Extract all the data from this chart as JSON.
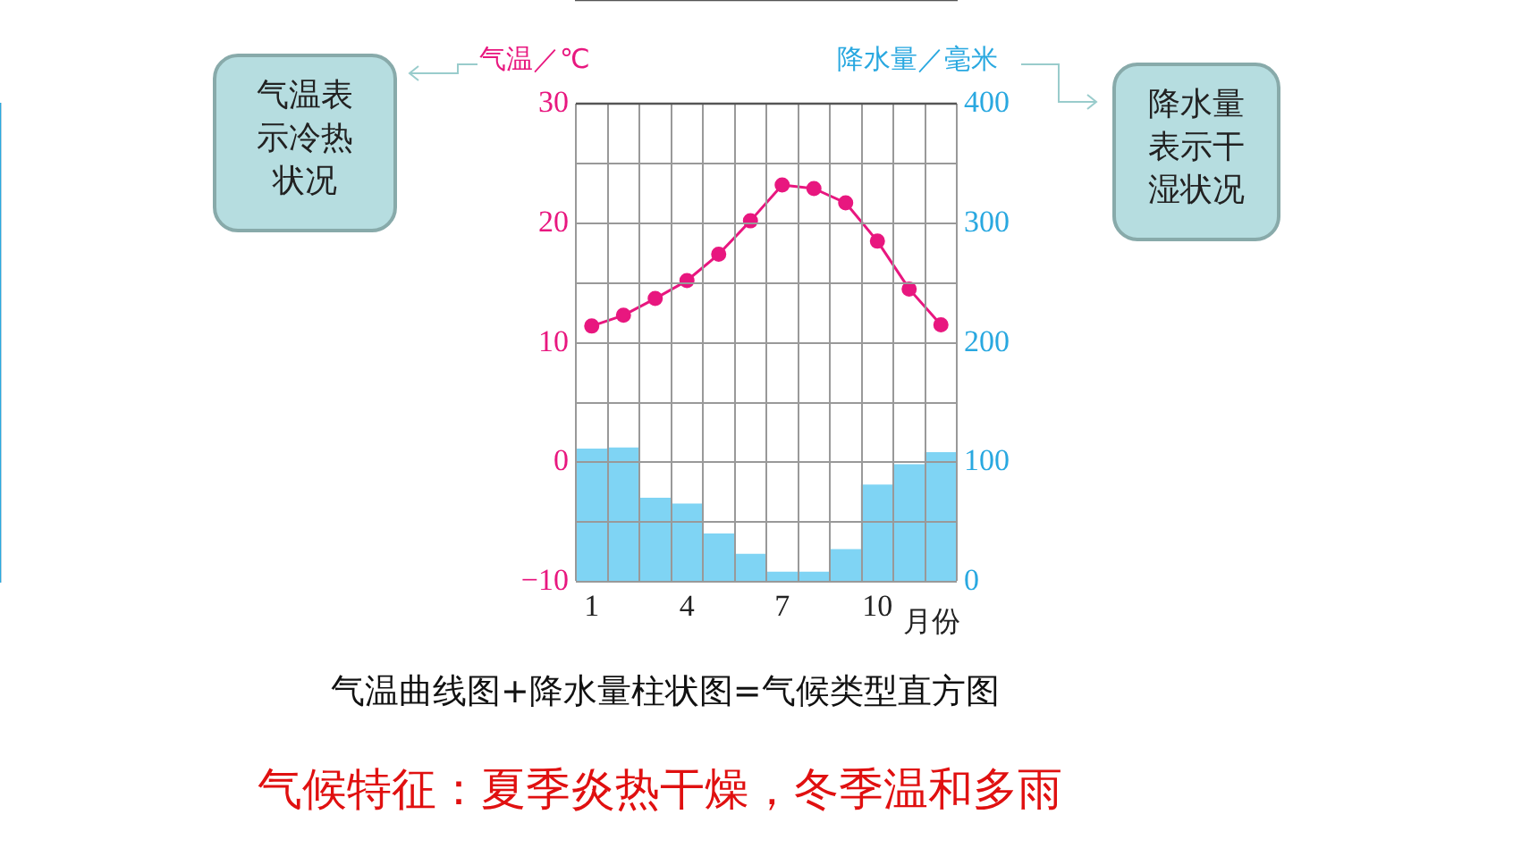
{
  "chart_data": {
    "type": "bar",
    "categories": [
      "1",
      null,
      null,
      "4",
      null,
      null,
      "7",
      null,
      null,
      "10",
      null,
      null
    ],
    "series": [
      {
        "axis": "y2",
        "color": "#7fd4f4",
        "values": [
          111,
          112,
          70,
          65,
          40,
          23,
          8,
          8,
          27,
          81,
          98,
          108
        ]
      },
      {
        "type": "line",
        "axis": "y",
        "color": "#e8177f",
        "marker": "circle",
        "values": [
          11.4,
          12.3,
          13.7,
          15.2,
          17.4,
          20.2,
          23.2,
          22.9,
          21.7,
          18.5,
          14.5,
          11.5
        ]
      }
    ],
    "xlabel": "月份",
    "ylabel": "气温／℃",
    "y2label": "降水量／毫米",
    "ylim": [
      -10,
      30
    ],
    "yticks": [
      -10,
      {
        "value": -5,
        "label": null
      },
      0,
      {
        "value": 5,
        "label": null
      },
      10,
      {
        "value": 15,
        "label": null
      },
      20,
      {
        "value": 25,
        "label": null
      },
      30
    ],
    "y2lim": [
      0,
      400
    ],
    "y2ticks": [
      0,
      {
        "value": 50,
        "label": null
      },
      100,
      {
        "value": 150,
        "label": null
      },
      200,
      {
        "value": 250,
        "label": null
      },
      300,
      {
        "value": 350,
        "label": null
      },
      400
    ],
    "grid": true,
    "legend": false,
    "annotations": [
      "气温表示冷热状况",
      "降水量表示干湿状况",
      "气温曲线图+降水量柱状图=气候类型直方图",
      "气候特征：夏季炎热干燥，冬季温和多雨"
    ]
  }
}
